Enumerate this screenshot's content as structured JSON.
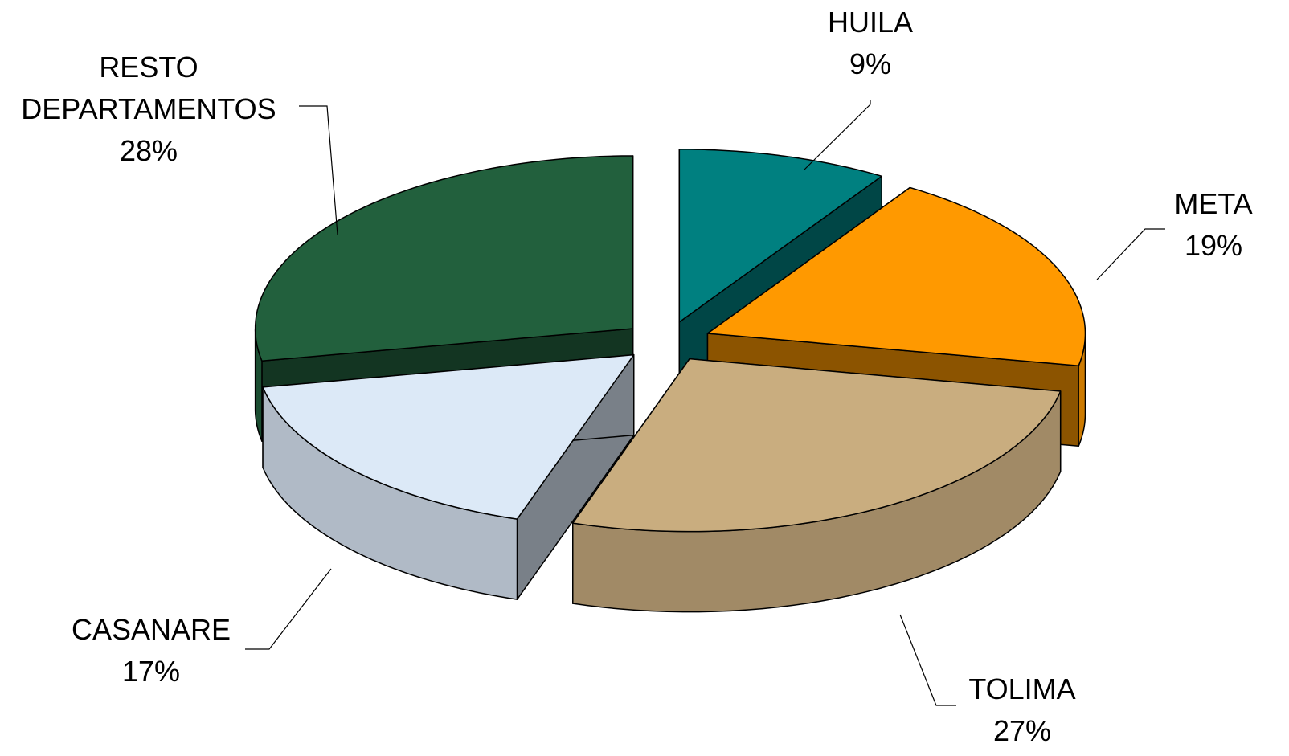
{
  "chart_data": {
    "type": "pie",
    "categories": [
      "HUILA",
      "META",
      "TOLIMA",
      "CASANARE",
      "RESTO DEPARTAMENTOS"
    ],
    "values": [
      9,
      19,
      27,
      17,
      28
    ],
    "value_labels": [
      "9%",
      "19%",
      "27%",
      "17%",
      "28%"
    ],
    "colors": [
      "#008080",
      "#ff9900",
      "#c9ad7f",
      "#dce9f7",
      "#22603d"
    ]
  }
}
